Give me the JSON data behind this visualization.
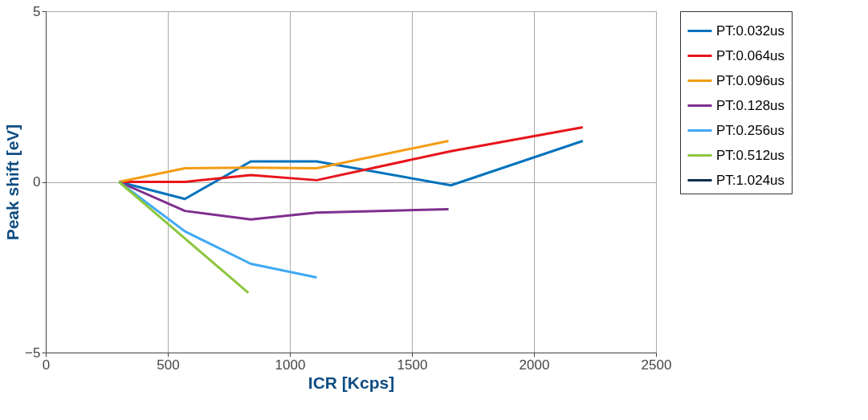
{
  "chart_data": {
    "type": "line",
    "xlabel": "ICR [Kcps]",
    "ylabel": "Peak shift [eV]",
    "xlim": [
      0,
      2500
    ],
    "xticks": [
      0,
      500,
      1000,
      1500,
      2000,
      2500
    ],
    "ylim": [
      -5,
      5
    ],
    "yticks": [
      -5,
      0,
      5
    ],
    "grid": true,
    "legend": "top right",
    "line_style": "solid",
    "marker": "none",
    "series": [
      {
        "name": "PT:0.032us",
        "color": "#0072bd",
        "x": [
          300,
          570,
          840,
          1110,
          1660,
          2200
        ],
        "values": [
          0,
          -0.5,
          0.6,
          0.6,
          -0.1,
          1.2
        ]
      },
      {
        "name": "PT:0.064us",
        "color": "#e8141c",
        "x": [
          300,
          570,
          840,
          1110,
          1660,
          2200
        ],
        "values": [
          0,
          0,
          0.2,
          0.05,
          0.9,
          1.6
        ]
      },
      {
        "name": "PT:0.096us",
        "color": "#f39c12",
        "x": [
          300,
          570,
          840,
          1110,
          1650
        ],
        "values": [
          0,
          0.4,
          0.42,
          0.4,
          1.2
        ]
      },
      {
        "name": "PT:0.128us",
        "color": "#7e2f8e",
        "x": [
          300,
          570,
          840,
          1110,
          1650
        ],
        "values": [
          0,
          -0.85,
          -1.1,
          -0.9,
          -0.8
        ]
      },
      {
        "name": "PT:0.256us",
        "color": "#3fa9f5",
        "x": [
          300,
          570,
          840,
          1110
        ],
        "values": [
          0,
          -1.45,
          -2.4,
          -2.8
        ]
      },
      {
        "name": "PT:0.512us",
        "color": "#8cc63f",
        "x": [
          300,
          830
        ],
        "values": [
          0,
          -3.25
        ]
      },
      {
        "name": "PT:1.024us",
        "color": "#0b2e4f"
      }
    ]
  }
}
